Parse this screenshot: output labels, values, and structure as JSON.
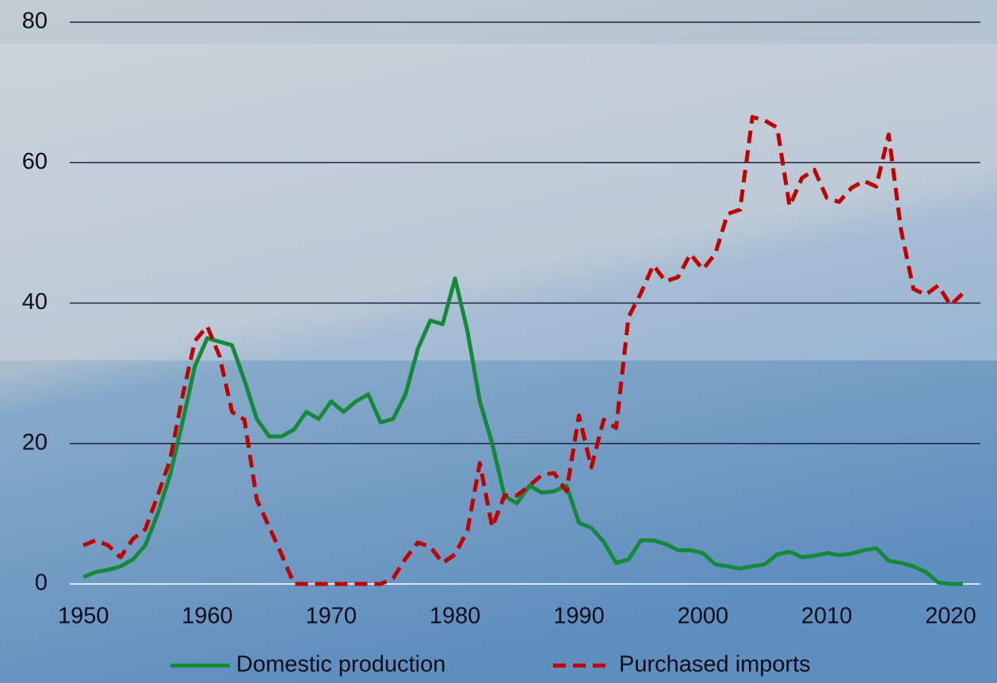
{
  "chart_data": {
    "type": "line",
    "x": [
      1950,
      1951,
      1952,
      1953,
      1954,
      1955,
      1956,
      1957,
      1958,
      1959,
      1960,
      1961,
      1962,
      1963,
      1964,
      1965,
      1966,
      1967,
      1968,
      1969,
      1970,
      1971,
      1972,
      1973,
      1974,
      1975,
      1976,
      1977,
      1978,
      1979,
      1980,
      1981,
      1982,
      1983,
      1984,
      1985,
      1986,
      1987,
      1988,
      1989,
      1990,
      1991,
      1992,
      1993,
      1994,
      1995,
      1996,
      1997,
      1998,
      1999,
      2000,
      2001,
      2002,
      2003,
      2004,
      2005,
      2006,
      2007,
      2008,
      2009,
      2010,
      2011,
      2012,
      2013,
      2014,
      2015,
      2016,
      2017,
      2018,
      2019,
      2020,
      2021
    ],
    "series": [
      {
        "name": "Domestic production",
        "color": "#15893a",
        "dash": false,
        "values": [
          1,
          1.7,
          2,
          2.5,
          3.5,
          5.5,
          10,
          15.5,
          23,
          31,
          35,
          34.5,
          34,
          29,
          23.5,
          21,
          21,
          22,
          24.5,
          23.5,
          26,
          24.5,
          26,
          27,
          23,
          23.5,
          27,
          33.5,
          37.5,
          37,
          43.5,
          36,
          26,
          20,
          12.5,
          11.5,
          14,
          13,
          13.2,
          14,
          8.7,
          8,
          6,
          3,
          3.5,
          6.2,
          6.2,
          5.7,
          4.8,
          4.8,
          4.4,
          2.8,
          2.5,
          2.2,
          2.5,
          2.8,
          4.2,
          4.6,
          3.8,
          4,
          4.4,
          4.1,
          4.3,
          4.8,
          5.1,
          3.3,
          3,
          2.5,
          1.7,
          0.2,
          0,
          0
        ]
      },
      {
        "name": "Purchased imports",
        "color": "#c00000",
        "dash": true,
        "values": [
          5.5,
          6.2,
          5.5,
          3.8,
          6.4,
          7.8,
          12.6,
          17.7,
          26.7,
          34.6,
          36.7,
          32.4,
          24.5,
          23.4,
          12,
          8.1,
          4.2,
          0,
          0,
          0,
          0,
          0,
          0,
          0,
          0,
          0.8,
          3.6,
          5.9,
          5.3,
          3,
          4.2,
          7.6,
          17.2,
          8.1,
          12.6,
          12.6,
          14,
          15.5,
          15.8,
          13.2,
          24,
          16.6,
          23.4,
          22.2,
          38,
          41.4,
          45.4,
          43.1,
          43.7,
          47,
          44.8,
          47,
          52.7,
          53.3,
          66.5,
          66,
          65,
          53.8,
          57.8,
          59,
          55,
          54.4,
          56.4,
          57.4,
          56.6,
          64,
          50.4,
          42,
          41.2,
          42.5,
          39.7,
          41.4
        ]
      }
    ],
    "xlim": [
      1948.9,
      2022.4
    ],
    "xticks": [
      1950,
      1960,
      1970,
      1980,
      1990,
      2000,
      2010,
      2020
    ],
    "ylim": [
      0,
      80
    ],
    "yticks": [
      0,
      20,
      40,
      60,
      80
    ],
    "grid": true,
    "legend": "bottom"
  }
}
